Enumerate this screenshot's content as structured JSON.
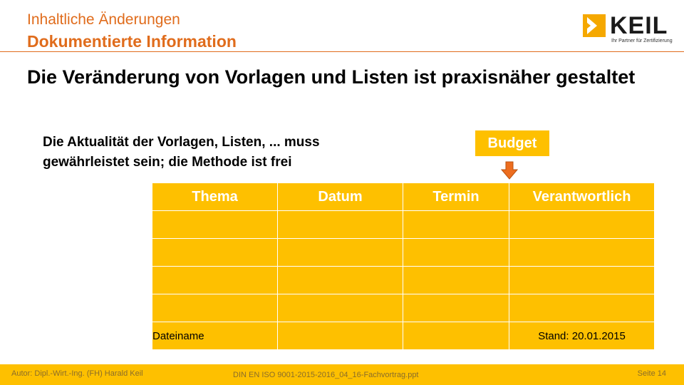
{
  "header": {
    "subtitle": "Inhaltliche Änderungen",
    "title": "Dokumentierte Information"
  },
  "logo": {
    "wordmark": "KEIL",
    "tagline": "Ihr Partner für Zertifizierung",
    "colors": {
      "mark": "#f5a800",
      "text": "#1a1a1a"
    }
  },
  "main": {
    "heading": "Die Veränderung von Vorlagen und Listen ist praxisnäher gestaltet",
    "body": "Die Aktualität der Vorlagen, Listen, ... muss gewährleistet sein; die Methode ist frei",
    "callout": {
      "label": "Budget",
      "icon": "down-arrow-icon"
    }
  },
  "table": {
    "headers": [
      "Thema",
      "Datum",
      "Termin",
      "Verantwortlich"
    ],
    "footer_row": {
      "file_label": "Dateiname",
      "date_label": "Stand: 20.01.2015"
    }
  },
  "footer": {
    "author": "Autor: Dipl.-Wirt.-Ing. (FH) Harald  Keil",
    "document": "DIN EN ISO 9001-2015-2016_04_16-Fachvortrag.ppt",
    "page": "Seite 14"
  },
  "colors": {
    "accent": "#e06c1c",
    "table_fill": "#fec000",
    "footer_fill": "#fec000"
  }
}
